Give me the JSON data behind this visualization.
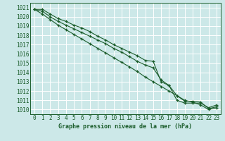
{
  "title": "Graphe pression niveau de la mer (hPa)",
  "bg_color": "#cce8e8",
  "grid_color": "#b0d0d0",
  "line_color": "#1a5c2a",
  "yticks": [
    1010,
    1011,
    1012,
    1013,
    1014,
    1015,
    1016,
    1017,
    1018,
    1019,
    1020,
    1021
  ],
  "ylim": [
    1009.5,
    1021.5
  ],
  "xlim": [
    -0.5,
    23.5
  ],
  "line1": [
    1020.8,
    1020.8,
    1020.3,
    1019.8,
    1019.5,
    1019.1,
    1018.8,
    1018.4,
    1017.9,
    1017.5,
    1017.0,
    1016.6,
    1016.2,
    1015.8,
    1015.3,
    1015.2,
    1013.0,
    1012.6,
    1011.0,
    1010.7,
    1010.7,
    1010.7,
    1010.2,
    1010.5
  ],
  "line2": [
    1020.8,
    1020.6,
    1020.0,
    1019.5,
    1019.1,
    1018.7,
    1018.3,
    1017.9,
    1017.5,
    1017.1,
    1016.6,
    1016.2,
    1015.7,
    1015.2,
    1014.8,
    1014.5,
    1013.2,
    1012.6,
    1011.5,
    1010.9,
    1010.9,
    1010.8,
    1010.1,
    1010.3
  ],
  "line3": [
    1020.8,
    1020.3,
    1019.7,
    1019.1,
    1018.6,
    1018.1,
    1017.6,
    1017.1,
    1016.6,
    1016.1,
    1015.6,
    1015.1,
    1014.6,
    1014.1,
    1013.5,
    1013.0,
    1012.5,
    1012.0,
    1011.5,
    1011.0,
    1010.8,
    1010.5,
    1010.0,
    1010.2
  ],
  "xlabel_fontsize": 6.0,
  "tick_fontsize": 5.5
}
